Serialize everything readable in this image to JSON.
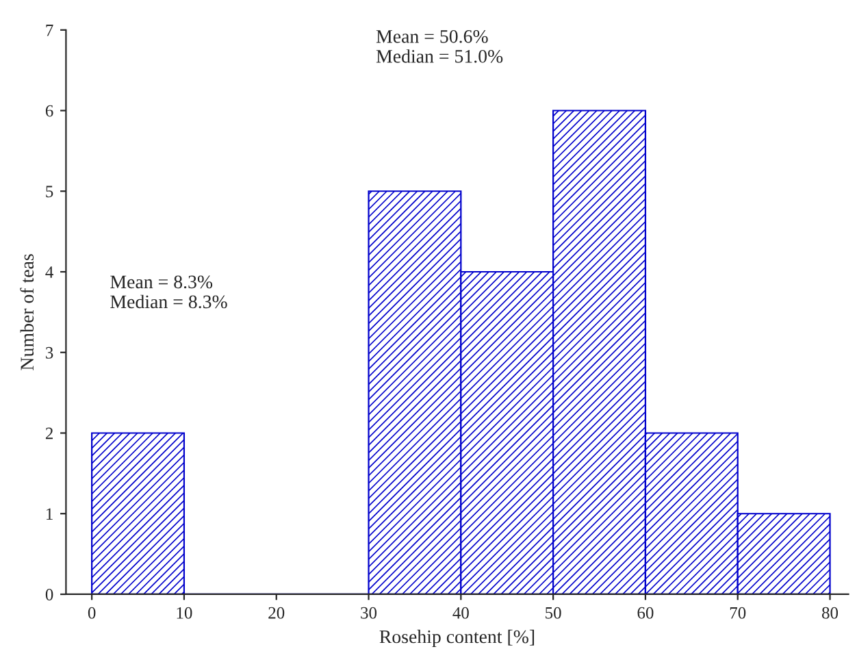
{
  "chart_data": {
    "type": "histogram",
    "xlabel": "Rosehip content [%]",
    "ylabel": "Number of teas",
    "bins": [
      0,
      10,
      20,
      30,
      40,
      50,
      60,
      70,
      80
    ],
    "values": [
      2,
      0,
      0,
      5,
      4,
      6,
      2,
      1
    ],
    "color": "#0000cc",
    "xlim": [
      -2.8,
      82
    ],
    "xticks": [
      0,
      10,
      20,
      30,
      40,
      50,
      60,
      70,
      80
    ],
    "ylim": [
      0,
      7
    ],
    "yticks": [
      0,
      1,
      2,
      3,
      4,
      5,
      6,
      7
    ],
    "grid": false,
    "annotations": [
      "Mean = 8.3%\nMedian = 8.3%",
      "Mean = 50.6%\nMedian = 51.0%"
    ]
  }
}
